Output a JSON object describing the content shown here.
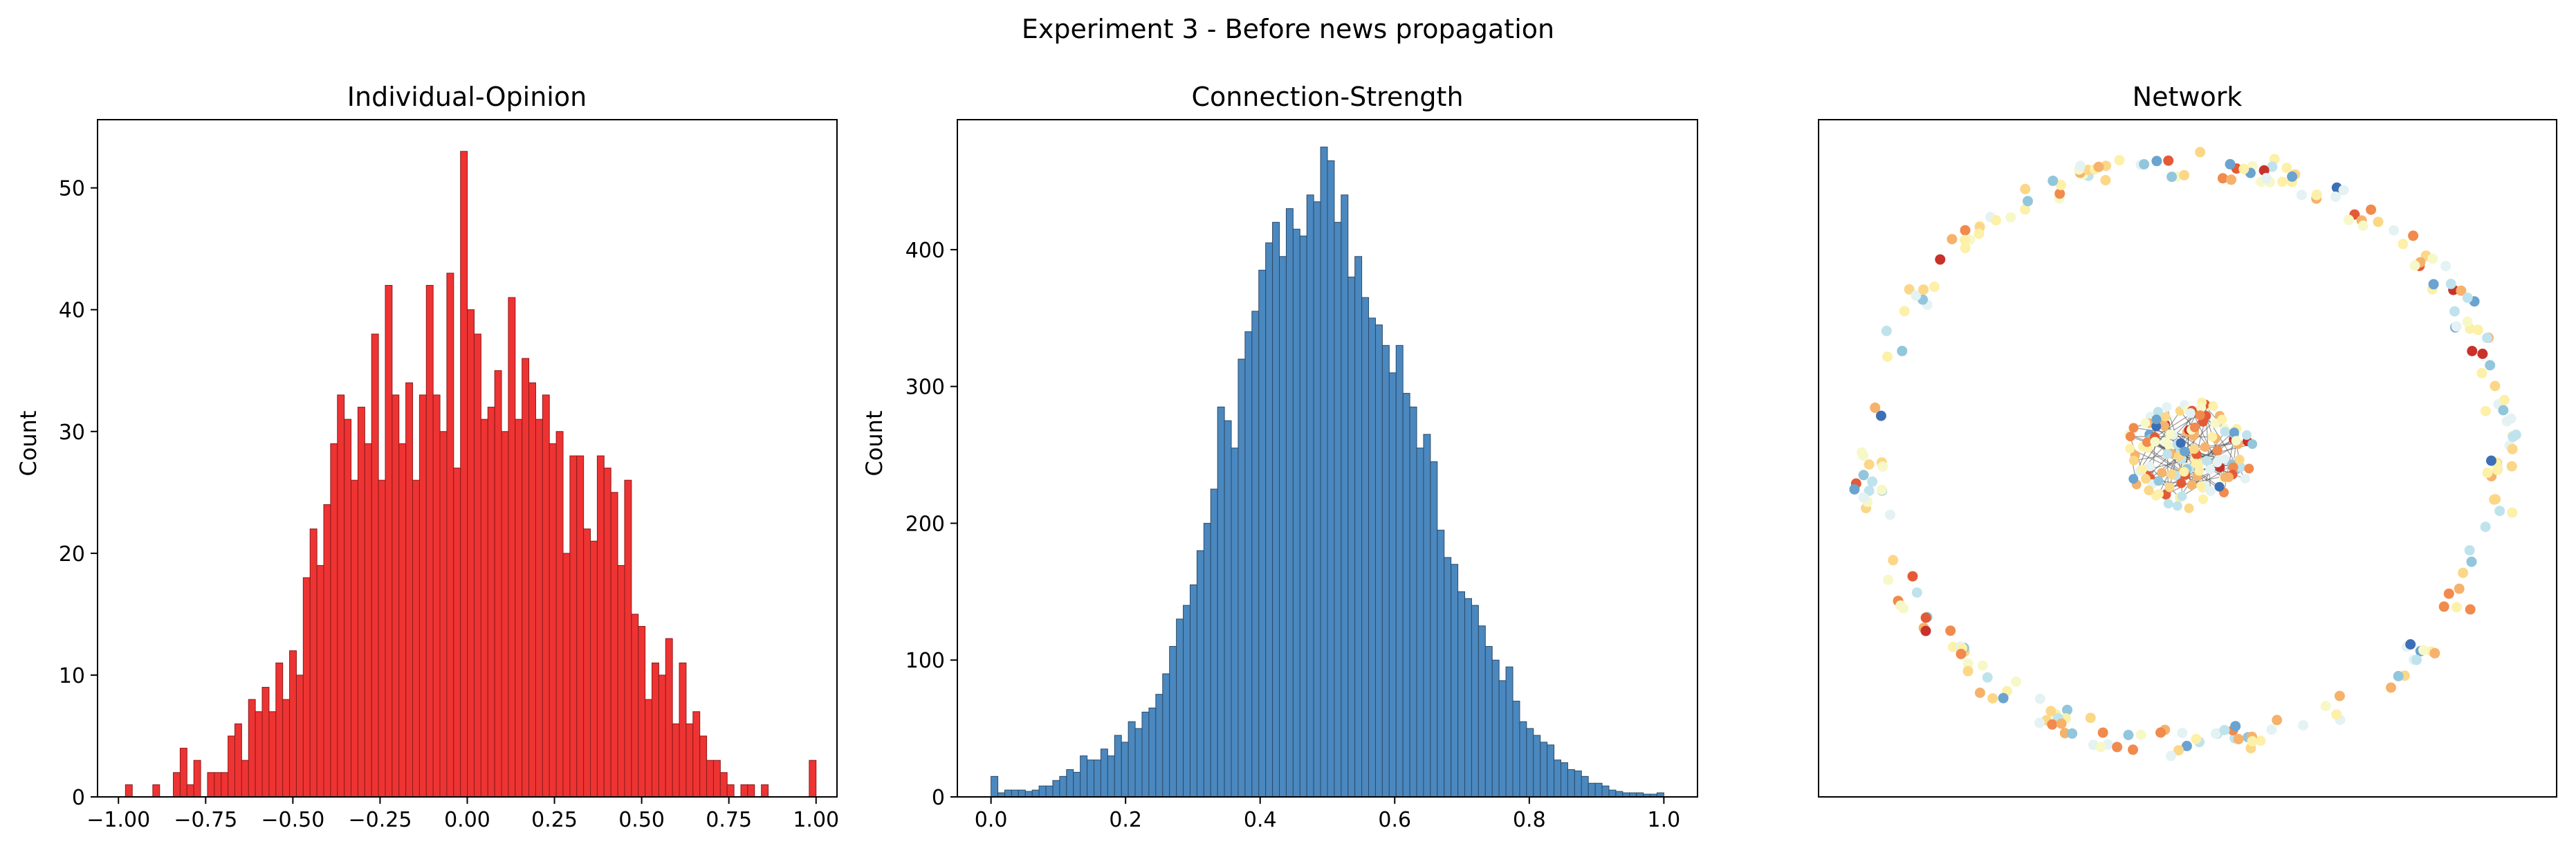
{
  "figure": {
    "suptitle": "Experiment 3 - Before news propagation"
  },
  "chart_data": [
    {
      "type": "bar",
      "title": "Individual-Opinion",
      "xlabel": "",
      "ylabel": "Count",
      "xlim": [
        -1.06,
        1.06
      ],
      "ylim": [
        0,
        55.6
      ],
      "xticks": [
        "-1.00",
        "-0.75",
        "-0.50",
        "-0.25",
        "0.00",
        "0.25",
        "0.50",
        "0.75",
        "1.00"
      ],
      "yticks": [
        "0",
        "10",
        "20",
        "30",
        "40",
        "50"
      ],
      "bin_range": [
        -0.98,
        1.0
      ],
      "bar_color": "#ee3333",
      "edge_color": "#8a1a1a",
      "counts": [
        1,
        0,
        0,
        0,
        1,
        0,
        0,
        2,
        4,
        1,
        3,
        0,
        2,
        2,
        2,
        5,
        6,
        3,
        8,
        7,
        9,
        7,
        11,
        8,
        12,
        10,
        18,
        22,
        19,
        24,
        29,
        33,
        31,
        26,
        32,
        29,
        38,
        26,
        42,
        33,
        29,
        34,
        26,
        33,
        42,
        33,
        30,
        43,
        27,
        53,
        40,
        38,
        31,
        32,
        35,
        30,
        41,
        31,
        36,
        34,
        31,
        33,
        29,
        30,
        20,
        28,
        28,
        22,
        21,
        28,
        27,
        25,
        19,
        26,
        15,
        14,
        8,
        11,
        10,
        13,
        6,
        11,
        6,
        7,
        5,
        3,
        3,
        2,
        1,
        0,
        1,
        1,
        0,
        1,
        0,
        0,
        0,
        0,
        0,
        0,
        3
      ]
    },
    {
      "type": "bar",
      "title": "Connection-Strength",
      "xlabel": "",
      "ylabel": "Count",
      "xlim": [
        -0.05,
        1.05
      ],
      "ylim": [
        0,
        495
      ],
      "xticks": [
        "0.0",
        "0.2",
        "0.4",
        "0.6",
        "0.8",
        "1.0"
      ],
      "yticks": [
        "0",
        "100",
        "200",
        "300",
        "400"
      ],
      "bin_range": [
        0.0,
        1.0
      ],
      "bar_color": "#4a88bf",
      "edge_color": "#2e4a66",
      "counts": [
        15,
        3,
        5,
        5,
        5,
        4,
        5,
        8,
        8,
        12,
        15,
        20,
        18,
        30,
        27,
        27,
        35,
        30,
        45,
        40,
        55,
        50,
        62,
        65,
        75,
        90,
        110,
        130,
        140,
        155,
        180,
        200,
        225,
        285,
        275,
        255,
        320,
        340,
        355,
        385,
        405,
        420,
        395,
        430,
        415,
        410,
        440,
        435,
        475,
        465,
        420,
        440,
        380,
        395,
        365,
        350,
        345,
        330,
        310,
        330,
        295,
        285,
        255,
        265,
        245,
        195,
        175,
        170,
        150,
        145,
        140,
        125,
        110,
        100,
        85,
        95,
        70,
        55,
        50,
        45,
        40,
        38,
        27,
        25,
        20,
        19,
        15,
        10,
        10,
        8,
        5,
        4,
        3,
        3,
        3,
        2,
        2,
        3
      ]
    },
    {
      "type": "scatter",
      "title": "Network",
      "xlabel": "",
      "ylabel": "",
      "grid": false,
      "ring_node_count": 245,
      "cluster_node_count": 140,
      "palette": [
        "#c8322a",
        "#e45a36",
        "#f18a4d",
        "#f6b26b",
        "#fbd787",
        "#fdf0a8",
        "#f7f8c8",
        "#e4f2f4",
        "#bfe3ec",
        "#92c6dc",
        "#6aa3cf",
        "#3d6fb4"
      ]
    }
  ]
}
